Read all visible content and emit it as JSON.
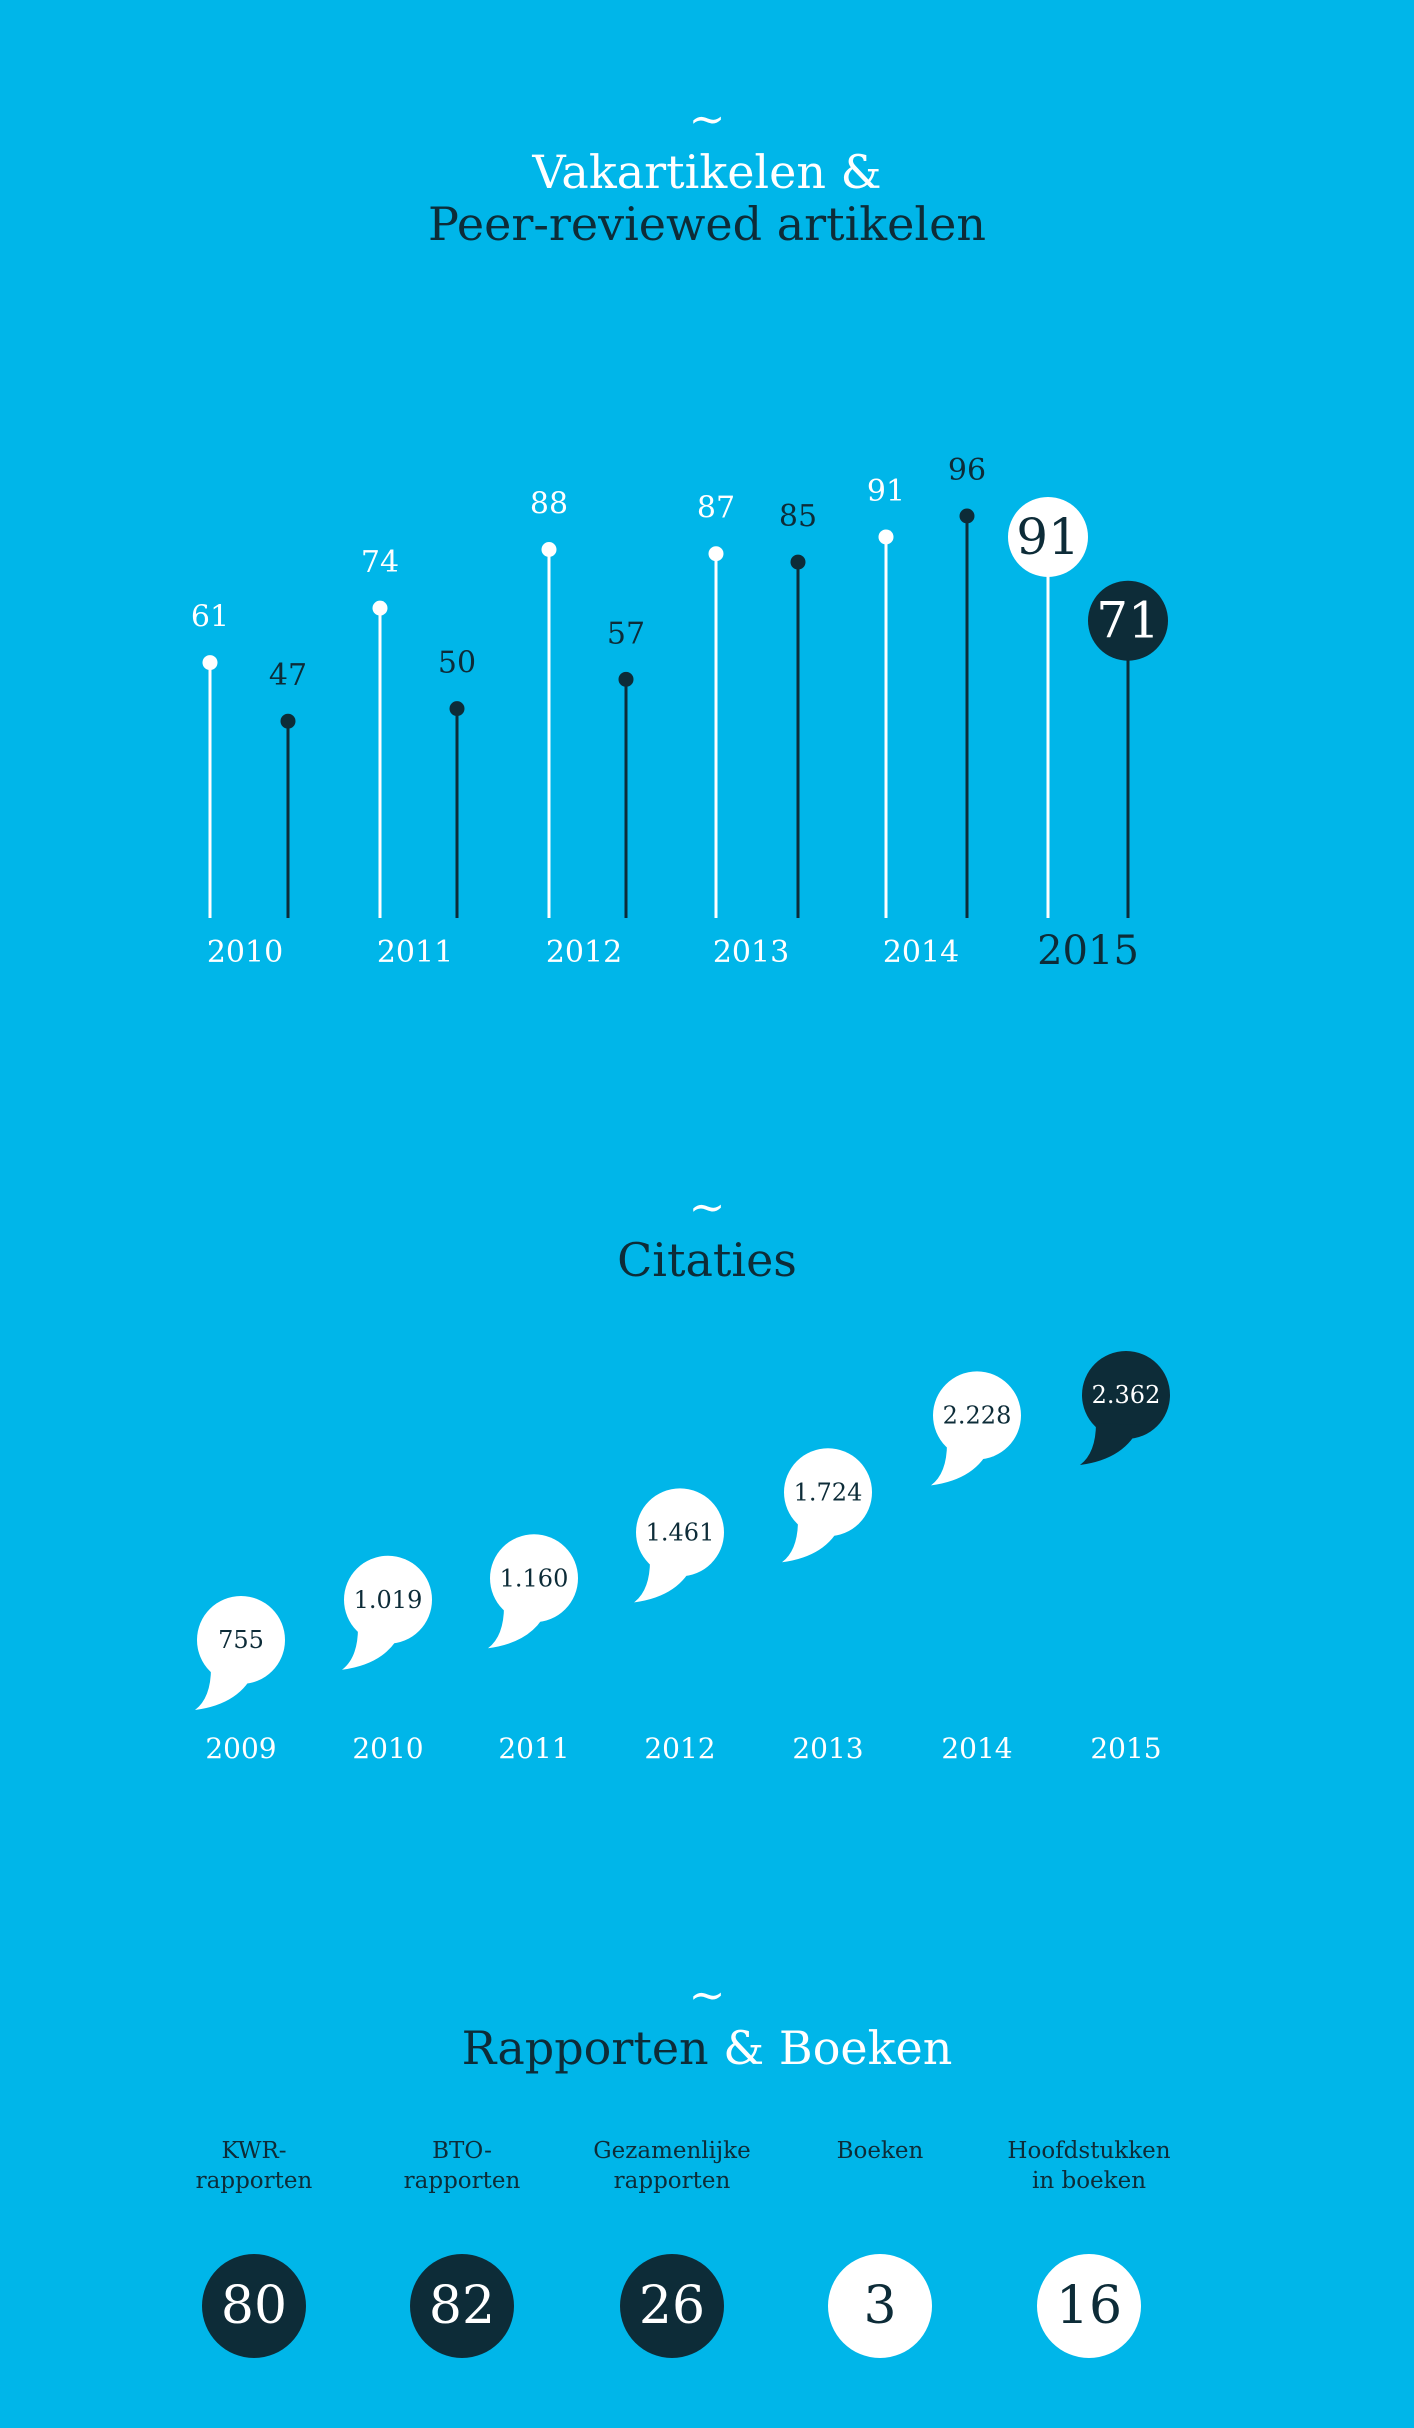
{
  "colors": {
    "background": "#00b6e9",
    "white": "#ffffff",
    "dark": "#0d2c38"
  },
  "icons": {
    "divider": "tilde-ornament"
  },
  "section1": {
    "ornament": "~",
    "title_part1": "Vakartikelen",
    "title_amp": " &",
    "title_line2": "Peer-reviewed artikelen"
  },
  "section2": {
    "ornament": "~",
    "title": "Citaties"
  },
  "section3": {
    "ornament": "~",
    "title_part1": "Rapporten",
    "title_amp": " &",
    "title_part2": " Boeken"
  },
  "chart_data": [
    {
      "type": "lollipop",
      "categories": [
        "2010",
        "2011",
        "2012",
        "2013",
        "2014",
        "2015"
      ],
      "series": [
        {
          "color": "#ffffff",
          "values": [
            61,
            74,
            88,
            87,
            91,
            91
          ]
        },
        {
          "color": "#0d2c38",
          "values": [
            47,
            50,
            57,
            85,
            96,
            71
          ]
        }
      ],
      "highlight_category": "2015",
      "grid": false
    },
    {
      "type": "bubble-series",
      "categories": [
        "2009",
        "2010",
        "2011",
        "2012",
        "2013",
        "2014",
        "2015"
      ],
      "labels": [
        "755",
        "1.019",
        "1.160",
        "1.461",
        "1.724",
        "2.228",
        "2.362"
      ],
      "values": [
        755,
        1019,
        1160,
        1461,
        1724,
        2228,
        2362
      ],
      "highlight_category": "2015"
    },
    {
      "type": "circles",
      "items": [
        {
          "label_line1": "KWR-",
          "label_line2": "rapporten",
          "value": "80",
          "style": "dark"
        },
        {
          "label_line1": "BTO-",
          "label_line2": "rapporten",
          "value": "82",
          "style": "dark"
        },
        {
          "label_line1": "Gezamenlijke",
          "label_line2": "rapporten",
          "value": "26",
          "style": "dark"
        },
        {
          "label_line1": "Boeken",
          "label_line2": "",
          "value": "3",
          "style": "white"
        },
        {
          "label_line1": "Hoofdstukken",
          "label_line2": "in boeken",
          "value": "16",
          "style": "white"
        }
      ]
    }
  ]
}
